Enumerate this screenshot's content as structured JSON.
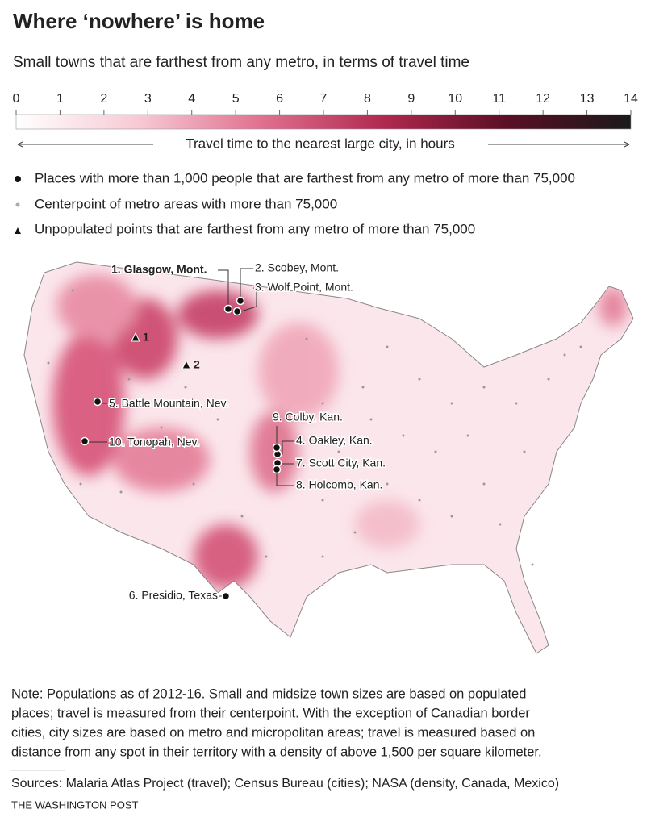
{
  "header": {
    "title": "Where ‘nowhere’ is home",
    "subtitle": "Small towns that are farthest from any metro, in terms of travel time"
  },
  "legend": {
    "range": [
      0,
      14
    ],
    "ticks": [
      0,
      1,
      2,
      3,
      4,
      5,
      6,
      7,
      8,
      9,
      10,
      11,
      12,
      13,
      14
    ],
    "colors": [
      "#ffffff",
      "#f7c9d4",
      "#e0708f",
      "#b0284f",
      "#5a0f25",
      "#1a1a1a"
    ],
    "axis_label": "Travel time to the nearest large city, in hours",
    "items": [
      "Places with more than 1,000 people that are farthest from any metro of more than 75,000",
      "Centerpoint of metro areas with more than 75,000",
      "Unpopulated points that are farthest from any metro of more than 75,000"
    ]
  },
  "map": {
    "places": [
      "1. Glasgow, Mont.",
      "2. Scobey, Mont.",
      "3. Wolf Point, Mont.",
      "4. Oakley, Kan.",
      "5. Battle Mountain, Nev.",
      "6. Presidio, Texas",
      "7. Scott City, Kan.",
      "8. Holcomb, Kan.",
      "9. Colby, Kan.",
      "10. Tonopah, Nev."
    ],
    "unpopulated": [
      "1",
      "2"
    ]
  },
  "note": [
    "Note: Populations as of 2012-16. Small and midsize town sizes are based on populated",
    "places; travel is measured from their centerpoint. With the exception of Canadian border",
    "cities, city sizes are based on metro and micropolitan areas; travel is measured based on",
    "distance from any spot in their territory with a density of above 1,500 per square kilometer."
  ],
  "sources": "Sources: Malaria Atlas Project (travel); Census Bureau (cities); NASA (density, Canada, Mexico)",
  "credit": "THE WASHINGTON POST"
}
